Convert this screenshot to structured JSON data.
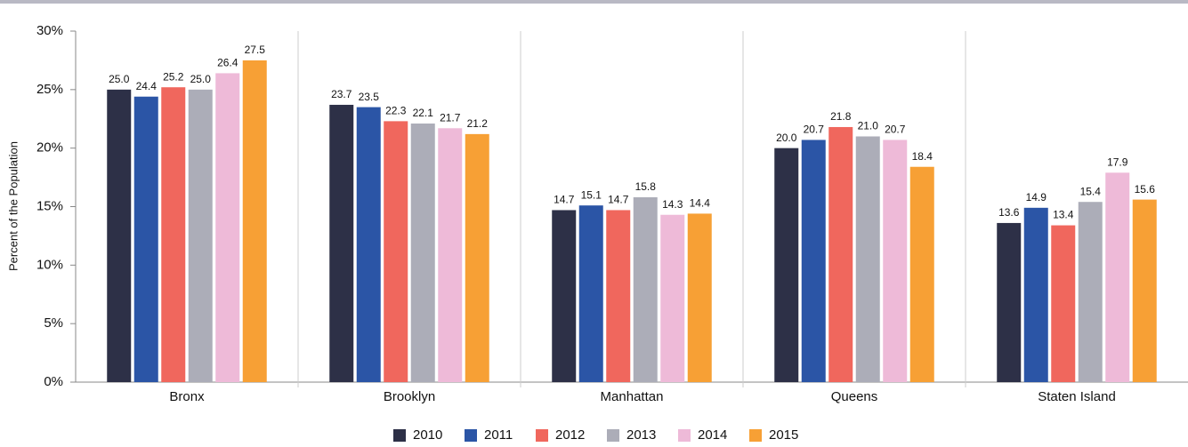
{
  "chart_data": {
    "type": "bar",
    "y_label": "Percent of the Population",
    "categories": [
      "Bronx",
      "Brooklyn",
      "Manhattan",
      "Queens",
      "Staten Island"
    ],
    "series": [
      {
        "name": "2010",
        "color": "#2d3047",
        "values": [
          25.0,
          23.7,
          14.7,
          20.0,
          13.6
        ],
        "value_labels": [
          "25.0",
          "23.7",
          "14.7",
          "20.0",
          "13.6"
        ]
      },
      {
        "name": "2011",
        "color": "#2b55a6",
        "values": [
          24.4,
          23.5,
          15.1,
          20.7,
          14.9
        ],
        "value_labels": [
          "24.4",
          "23.5",
          "15.1",
          "20.7",
          "14.9"
        ]
      },
      {
        "name": "2012",
        "color": "#f0675d",
        "values": [
          25.2,
          22.3,
          14.7,
          21.8,
          13.4
        ],
        "value_labels": [
          "25.2",
          "22.3",
          "14.7",
          "21.8",
          "13.4"
        ]
      },
      {
        "name": "2013",
        "color": "#acadb8",
        "values": [
          25.0,
          22.1,
          15.8,
          21.0,
          15.4
        ],
        "value_labels": [
          "25.0",
          "22.1",
          "15.8",
          "21.0",
          "15.4"
        ]
      },
      {
        "name": "2014",
        "color": "#eebad8",
        "values": [
          26.4,
          21.7,
          14.3,
          20.7,
          17.9
        ],
        "value_labels": [
          "26.4",
          "21.7",
          "14.3",
          "20.7",
          "17.9"
        ]
      },
      {
        "name": "2015",
        "color": "#f7a035",
        "values": [
          27.5,
          21.2,
          14.4,
          18.4,
          15.6
        ],
        "value_labels": [
          "27.5",
          "21.2",
          "14.4",
          "18.4",
          "15.6"
        ]
      }
    ],
    "ylim": [
      0,
      30
    ],
    "yticks": [
      {
        "value": 0,
        "label": "0%"
      },
      {
        "value": 5,
        "label": "5%"
      },
      {
        "value": 10,
        "label": "10%"
      },
      {
        "value": 15,
        "label": "15%"
      },
      {
        "value": 20,
        "label": "20%"
      },
      {
        "value": 25,
        "label": "25%"
      },
      {
        "value": 30,
        "label": "30%"
      }
    ],
    "legend": "bottom"
  }
}
